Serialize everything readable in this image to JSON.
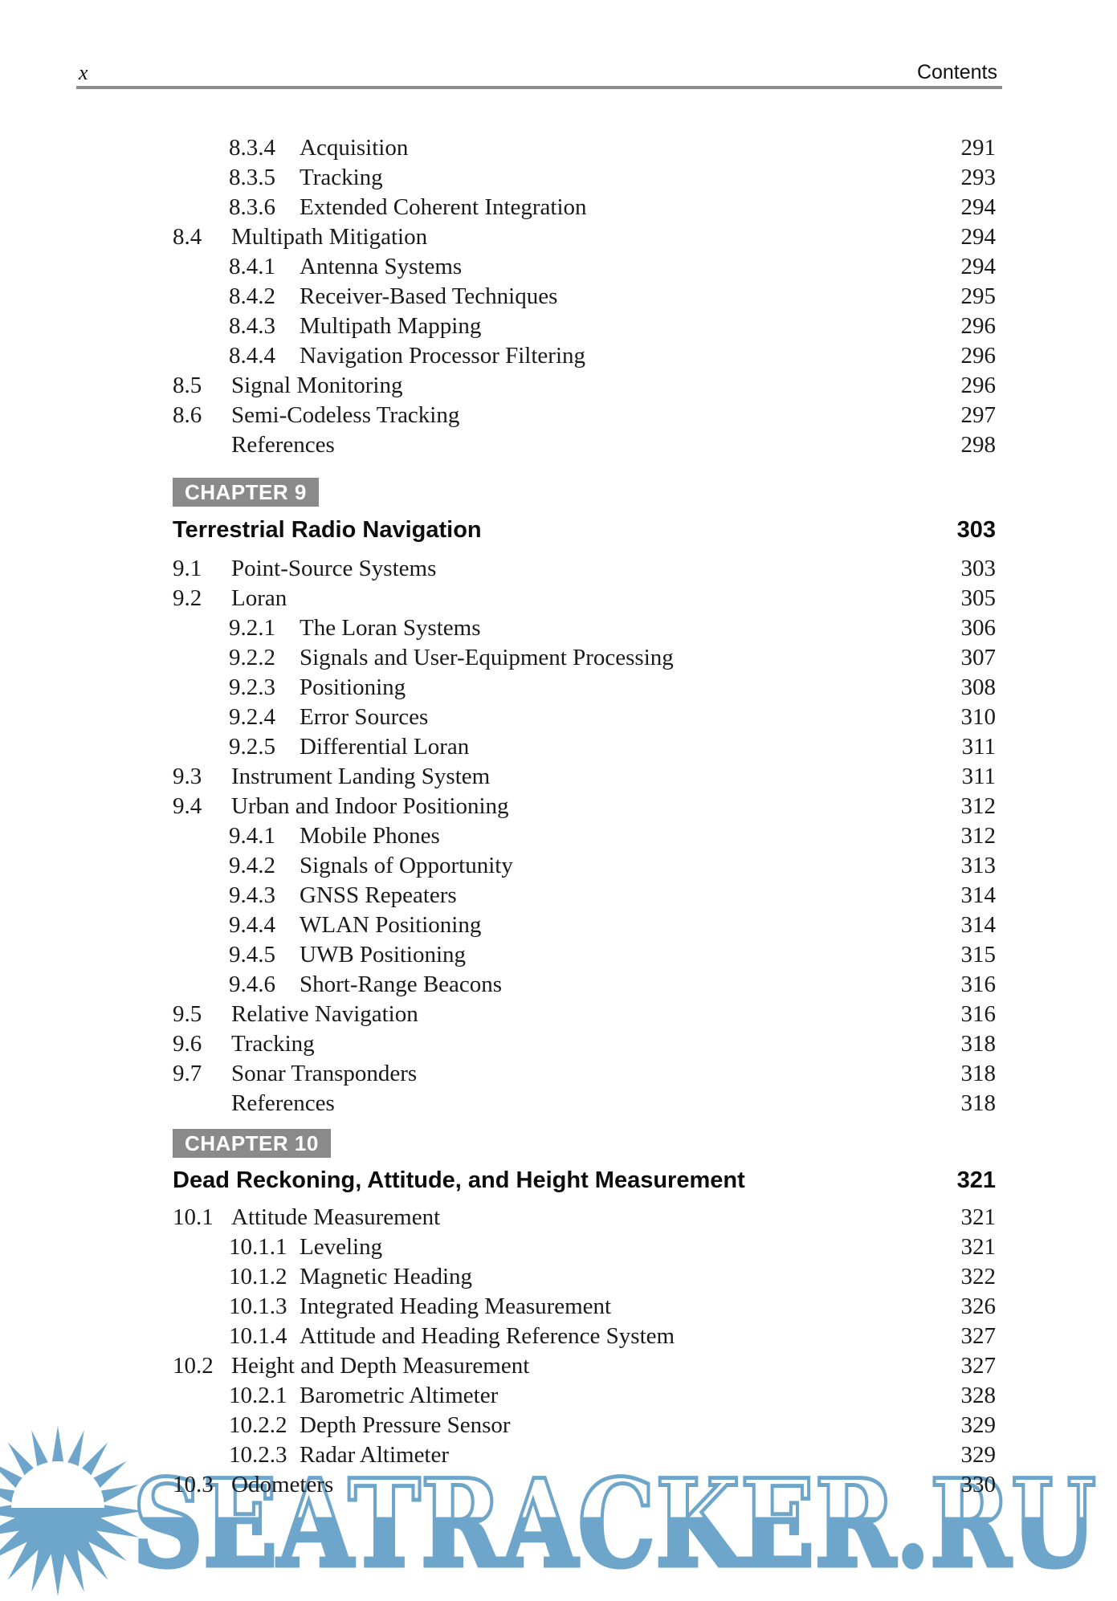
{
  "header": {
    "folio": "x",
    "title": "Contents"
  },
  "watermark": {
    "text": "SEATRACKER.RU",
    "color": "#6ea6cb"
  },
  "sections": [
    {
      "id": "c8",
      "entries": [
        {
          "num": "8.3.4",
          "title": "Acquisition",
          "page": "291",
          "level": 2
        },
        {
          "num": "8.3.5",
          "title": "Tracking",
          "page": "293",
          "level": 2
        },
        {
          "num": "8.3.6",
          "title": "Extended Coherent Integration",
          "page": "294",
          "level": 2
        },
        {
          "num": "8.4",
          "title": "Multipath Mitigation",
          "page": "294",
          "level": 1
        },
        {
          "num": "8.4.1",
          "title": "Antenna Systems",
          "page": "294",
          "level": 2
        },
        {
          "num": "8.4.2",
          "title": "Receiver-Based Techniques",
          "page": "295",
          "level": 2
        },
        {
          "num": "8.4.3",
          "title": "Multipath Mapping",
          "page": "296",
          "level": 2
        },
        {
          "num": "8.4.4",
          "title": "Navigation Processor Filtering",
          "page": "296",
          "level": 2
        },
        {
          "num": "8.5",
          "title": "Signal Monitoring",
          "page": "296",
          "level": 1
        },
        {
          "num": "8.6",
          "title": "Semi-Codeless Tracking",
          "page": "297",
          "level": 1
        },
        {
          "num": "",
          "title": "References",
          "page": "298",
          "level": 0
        }
      ]
    },
    {
      "id": "c9",
      "badge": "CHAPTER 9",
      "title": "Terrestrial Radio Navigation",
      "page": "303",
      "entries": [
        {
          "num": "9.1",
          "title": "Point-Source Systems",
          "page": "303",
          "level": 1
        },
        {
          "num": "9.2",
          "title": "Loran",
          "page": "305",
          "level": 1
        },
        {
          "num": "9.2.1",
          "title": "The Loran Systems",
          "page": "306",
          "level": 2
        },
        {
          "num": "9.2.2",
          "title": "Signals and User-Equipment Processing",
          "page": "307",
          "level": 2
        },
        {
          "num": "9.2.3",
          "title": "Positioning",
          "page": "308",
          "level": 2
        },
        {
          "num": "9.2.4",
          "title": "Error Sources",
          "page": "310",
          "level": 2
        },
        {
          "num": "9.2.5",
          "title": "Differential Loran",
          "page": "311",
          "level": 2
        },
        {
          "num": "9.3",
          "title": "Instrument Landing System",
          "page": "311",
          "level": 1
        },
        {
          "num": "9.4",
          "title": "Urban and Indoor Positioning",
          "page": "312",
          "level": 1
        },
        {
          "num": "9.4.1",
          "title": "Mobile Phones",
          "page": "312",
          "level": 2
        },
        {
          "num": "9.4.2",
          "title": "Signals of Opportunity",
          "page": "313",
          "level": 2
        },
        {
          "num": "9.4.3",
          "title": "GNSS Repeaters",
          "page": "314",
          "level": 2
        },
        {
          "num": "9.4.4",
          "title": "WLAN Positioning",
          "page": "314",
          "level": 2
        },
        {
          "num": "9.4.5",
          "title": "UWB Positioning",
          "page": "315",
          "level": 2
        },
        {
          "num": "9.4.6",
          "title": "Short-Range Beacons",
          "page": "316",
          "level": 2
        },
        {
          "num": "9.5",
          "title": "Relative Navigation",
          "page": "316",
          "level": 1
        },
        {
          "num": "9.6",
          "title": "Tracking",
          "page": "318",
          "level": 1
        },
        {
          "num": "9.7",
          "title": "Sonar Transponders",
          "page": "318",
          "level": 1
        },
        {
          "num": "",
          "title": "References",
          "page": "318",
          "level": 0
        }
      ]
    },
    {
      "id": "c10",
      "badge": "CHAPTER 10",
      "title": "Dead Reckoning, Attitude, and Height Measurement",
      "page": "321",
      "entries": [
        {
          "num": "10.1",
          "title": "Attitude Measurement",
          "page": "321",
          "level": 1
        },
        {
          "num": "10.1.1",
          "title": "Leveling",
          "page": "321",
          "level": 2
        },
        {
          "num": "10.1.2",
          "title": "Magnetic Heading",
          "page": "322",
          "level": 2
        },
        {
          "num": "10.1.3",
          "title": "Integrated Heading Measurement",
          "page": "326",
          "level": 2
        },
        {
          "num": "10.1.4",
          "title": "Attitude and Heading Reference System",
          "page": "327",
          "level": 2
        },
        {
          "num": "10.2",
          "title": "Height and Depth Measurement",
          "page": "327",
          "level": 1
        },
        {
          "num": "10.2.1",
          "title": "Barometric Altimeter",
          "page": "328",
          "level": 2
        },
        {
          "num": "10.2.2",
          "title": "Depth Pressure Sensor",
          "page": "329",
          "level": 2
        },
        {
          "num": "10.2.3",
          "title": "Radar Altimeter",
          "page": "329",
          "level": 2
        },
        {
          "num": "10.3",
          "title": "Odometers",
          "page": "330",
          "level": 1
        }
      ]
    }
  ]
}
